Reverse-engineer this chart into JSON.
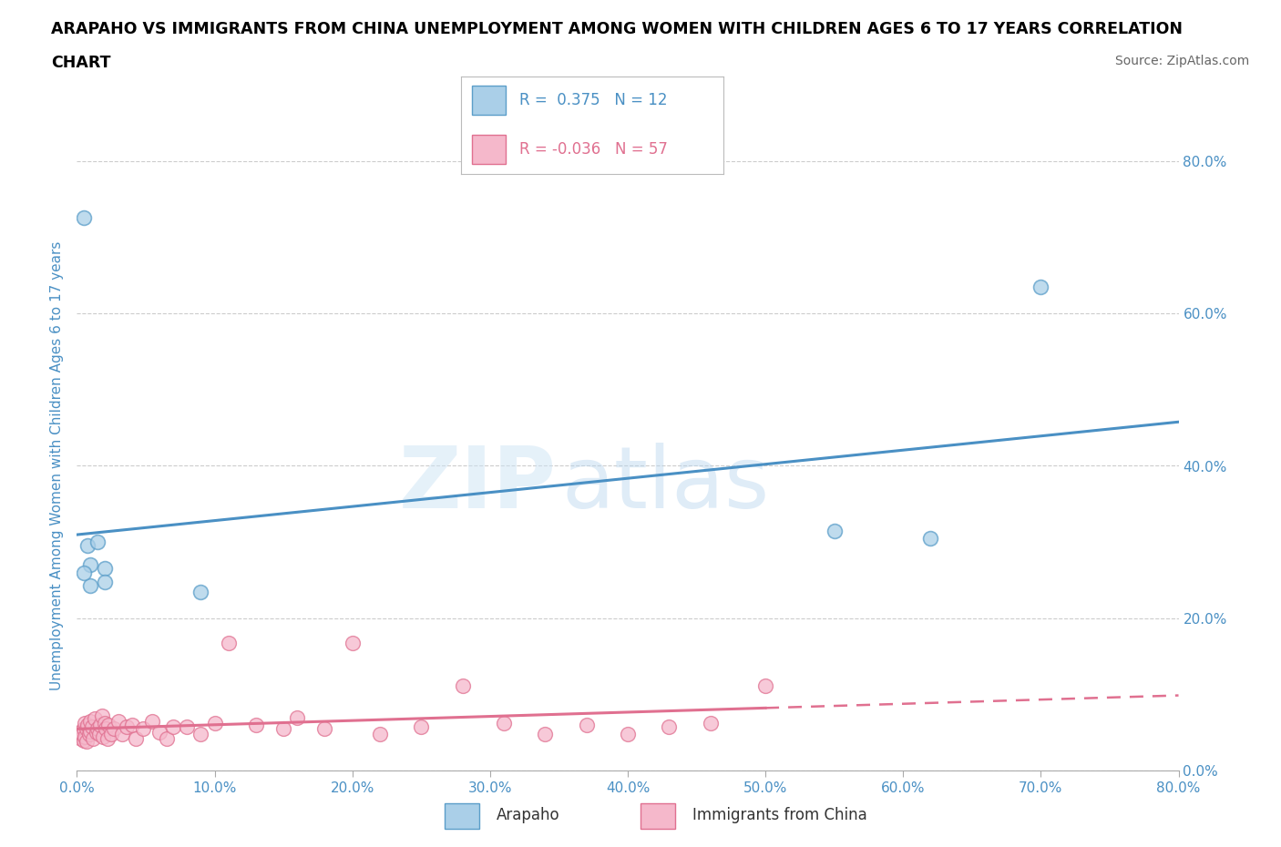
{
  "title_line1": "ARAPAHO VS IMMIGRANTS FROM CHINA UNEMPLOYMENT AMONG WOMEN WITH CHILDREN AGES 6 TO 17 YEARS CORRELATION",
  "title_line2": "CHART",
  "source": "Source: ZipAtlas.com",
  "ylabel": "Unemployment Among Women with Children Ages 6 to 17 years",
  "xlim": [
    0.0,
    0.8
  ],
  "ylim": [
    0.0,
    0.8
  ],
  "ytick_positions": [
    0.0,
    0.2,
    0.4,
    0.6,
    0.8
  ],
  "xtick_positions": [
    0.0,
    0.1,
    0.2,
    0.3,
    0.4,
    0.5,
    0.6,
    0.7,
    0.8
  ],
  "watermark_zip": "ZIP",
  "watermark_atlas": "atlas",
  "arapaho_scatter_facecolor": "#aacfe8",
  "arapaho_scatter_edgecolor": "#5b9ec9",
  "china_scatter_facecolor": "#f5b8cb",
  "china_scatter_edgecolor": "#e07090",
  "arapaho_line_color": "#4a90c4",
  "china_line_color": "#e07090",
  "arapaho_R": 0.375,
  "arapaho_N": 12,
  "china_R": -0.036,
  "china_N": 57,
  "arapaho_x": [
    0.005,
    0.008,
    0.01,
    0.015,
    0.02,
    0.09,
    0.55,
    0.62,
    0.7,
    0.02,
    0.01,
    0.005
  ],
  "arapaho_y": [
    0.725,
    0.295,
    0.27,
    0.3,
    0.265,
    0.235,
    0.315,
    0.305,
    0.635,
    0.248,
    0.243,
    0.26
  ],
  "china_x": [
    0.002,
    0.003,
    0.004,
    0.005,
    0.005,
    0.006,
    0.006,
    0.007,
    0.007,
    0.008,
    0.009,
    0.01,
    0.01,
    0.011,
    0.012,
    0.013,
    0.014,
    0.015,
    0.016,
    0.017,
    0.018,
    0.019,
    0.02,
    0.021,
    0.022,
    0.023,
    0.025,
    0.027,
    0.03,
    0.033,
    0.036,
    0.04,
    0.043,
    0.048,
    0.055,
    0.06,
    0.065,
    0.07,
    0.08,
    0.09,
    0.1,
    0.11,
    0.13,
    0.15,
    0.16,
    0.18,
    0.2,
    0.22,
    0.25,
    0.28,
    0.31,
    0.34,
    0.37,
    0.4,
    0.43,
    0.46,
    0.5
  ],
  "china_y": [
    0.05,
    0.042,
    0.048,
    0.055,
    0.04,
    0.062,
    0.045,
    0.038,
    0.055,
    0.06,
    0.048,
    0.052,
    0.065,
    0.058,
    0.042,
    0.068,
    0.05,
    0.055,
    0.048,
    0.06,
    0.072,
    0.045,
    0.062,
    0.055,
    0.042,
    0.06,
    0.048,
    0.055,
    0.065,
    0.048,
    0.058,
    0.06,
    0.042,
    0.055,
    0.065,
    0.05,
    0.042,
    0.058,
    0.058,
    0.048,
    0.062,
    0.168,
    0.06,
    0.055,
    0.07,
    0.055,
    0.168,
    0.048,
    0.058,
    0.112,
    0.062,
    0.048,
    0.06,
    0.048,
    0.058,
    0.062,
    0.112
  ],
  "background_color": "#ffffff",
  "grid_color": "#cccccc",
  "title_color": "#000000",
  "tick_label_color": "#4a90c4",
  "ylabel_color": "#4a90c4",
  "source_color": "#666666",
  "legend_edge_color": "#bbbbbb"
}
